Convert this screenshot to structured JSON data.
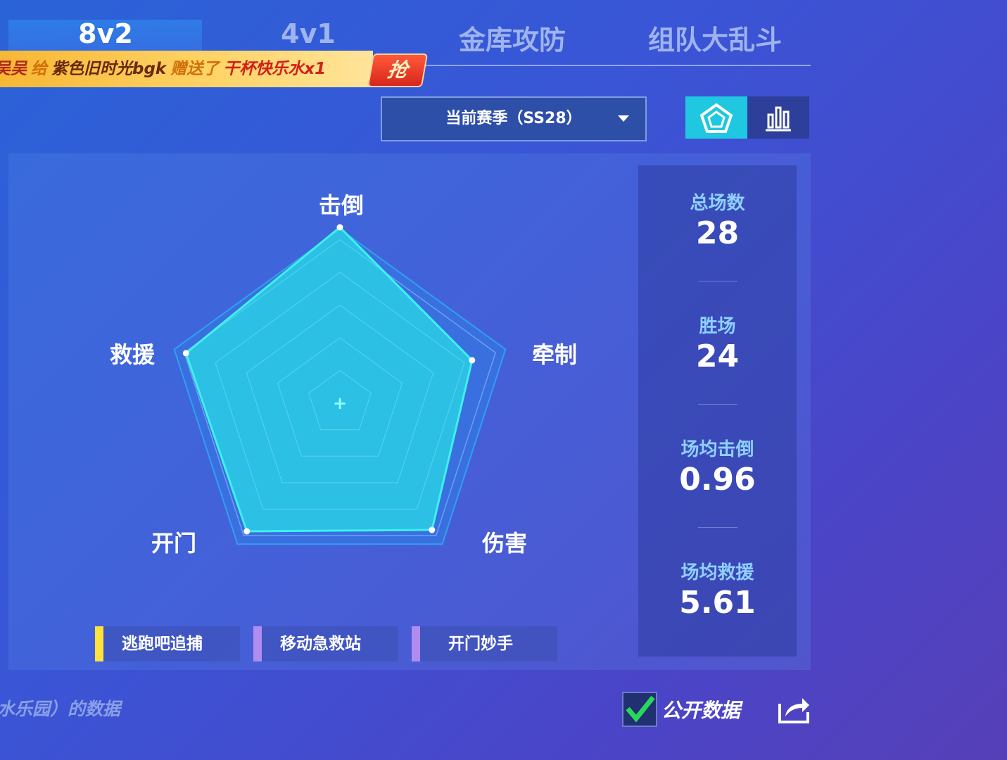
{
  "tabs": [
    "8v2",
    "4v1",
    "金库攻防",
    "组队大乱斗"
  ],
  "banner": {
    "parts": [
      "吴吴",
      "给",
      "紫色旧时光bgk",
      "赠送了",
      "干杯快乐水x1"
    ],
    "button": "抢"
  },
  "season_select": "当前赛季（SS28）",
  "radar": {
    "axes": [
      "击倒",
      "牵制",
      "伤害",
      "开门",
      "救援"
    ],
    "values": [
      1.0,
      0.79,
      0.89,
      0.9,
      0.92
    ],
    "max": 1
  },
  "stats": [
    {
      "label": "总场数",
      "value": 28
    },
    {
      "label": "胜场",
      "value": 24
    },
    {
      "label": "场均击倒",
      "value": 0.96
    },
    {
      "label": "场均救援",
      "value": 5.61
    }
  ],
  "tags": [
    "逃跑吧追捕",
    "移动急救站",
    "开门妙手"
  ],
  "footer": {
    "note": "水乐园）的数据",
    "public": "公开数据"
  }
}
